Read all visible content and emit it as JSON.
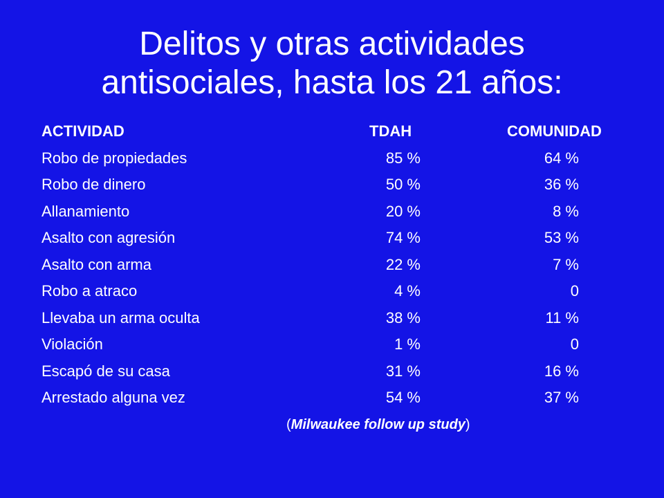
{
  "title": {
    "line1": "Delitos y otras actividades",
    "line2": "antisociales, hasta los 21 años:"
  },
  "table": {
    "headers": {
      "actividad": "ACTIVIDAD",
      "tdah": "TDAH",
      "comunidad": "COMUNIDAD"
    },
    "rows": [
      {
        "actividad": "Robo de propiedades",
        "tdah": "85 %",
        "comunidad": "64 %"
      },
      {
        "actividad": "Robo de dinero",
        "tdah": "50 %",
        "comunidad": "36 %"
      },
      {
        "actividad": "Allanamiento",
        "tdah": "20 %",
        "comunidad": "8 %"
      },
      {
        "actividad": "Asalto con agresión",
        "tdah": "74 %",
        "comunidad": "53 %"
      },
      {
        "actividad": "Asalto con arma",
        "tdah": "22 %",
        "comunidad": "7 %"
      },
      {
        "actividad": "Robo a atraco",
        "tdah": "4 %",
        "comunidad": "0"
      },
      {
        "actividad": "Llevaba un arma oculta",
        "tdah": "38 %",
        "comunidad": "11 %"
      },
      {
        "actividad": "Violación",
        "tdah": "1 %",
        "comunidad": "0"
      },
      {
        "actividad": "Escapó de su casa",
        "tdah": "31 %",
        "comunidad": "16 %"
      },
      {
        "actividad": "Arrestado alguna vez",
        "tdah": "54 %",
        "comunidad": "37 %"
      }
    ]
  },
  "source": {
    "open": "(",
    "text": "Milwaukee follow up study",
    "close": ")"
  },
  "colors": {
    "background": "#1414e6",
    "text": "#ffffff"
  }
}
